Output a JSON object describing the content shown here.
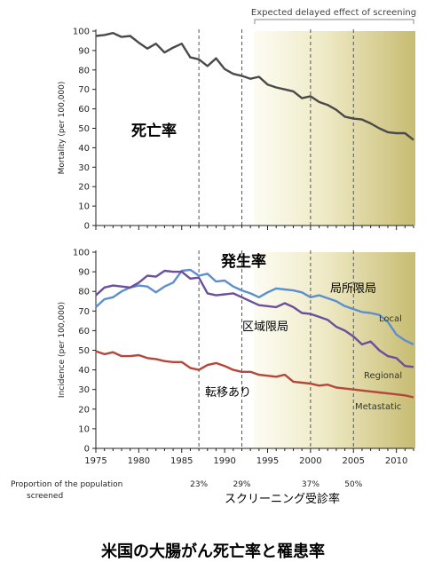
{
  "chart_data": [
    {
      "type": "line",
      "ylabel": "Mortality (per 100,000)",
      "ylim": [
        0,
        100
      ],
      "yticks": [
        0,
        10,
        20,
        30,
        40,
        50,
        60,
        70,
        80,
        90,
        100
      ],
      "xlim": [
        1975,
        2012
      ],
      "xticks": [
        1975,
        1980,
        1985,
        1990,
        1995,
        2000,
        2005,
        2010
      ],
      "grid": false,
      "overlay_label": "死亡率",
      "bracket_label": "Expected delayed effect of screening",
      "series": [
        {
          "color": "#4a4a4a",
          "x": [
            1975,
            1976,
            1977,
            1978,
            1979,
            1980,
            1981,
            1982,
            1983,
            1984,
            1985,
            1986,
            1987,
            1988,
            1989,
            1990,
            1991,
            1992,
            1993,
            1994,
            1995,
            1996,
            1997,
            1998,
            1999,
            2000,
            2001,
            2002,
            2003,
            2004,
            2005,
            2006,
            2007,
            2008,
            2009,
            2010,
            2011,
            2012
          ],
          "y": [
            97.5,
            98,
            99,
            97,
            97.5,
            94,
            91,
            93.5,
            89,
            91.5,
            93.5,
            86.5,
            85.5,
            82,
            86,
            80.5,
            78,
            77,
            75.5,
            76.5,
            72.5,
            71,
            70,
            69,
            65.5,
            66.5,
            63.5,
            62,
            59.5,
            56,
            55,
            54.5,
            52.5,
            50,
            48,
            47.5,
            47.5,
            44
          ]
        }
      ]
    },
    {
      "type": "line",
      "ylabel": "Incidence (per 100,000)",
      "ylim": [
        0,
        100
      ],
      "yticks": [
        0,
        10,
        20,
        30,
        40,
        50,
        60,
        70,
        80,
        90,
        100
      ],
      "xlim": [
        1975,
        2012
      ],
      "xticks": [
        1975,
        1980,
        1985,
        1990,
        1995,
        2000,
        2005,
        2010
      ],
      "xtick_labels": [
        "1975",
        "1980",
        "1985",
        "1990",
        "1995",
        "2000",
        "2005",
        "2010"
      ],
      "grid": false,
      "overlay_label": "発生率",
      "series": [
        {
          "name": "Local",
          "jp_name": "局所限局",
          "color": "#5b8fd0",
          "x": [
            1975,
            1976,
            1977,
            1978,
            1979,
            1980,
            1981,
            1982,
            1983,
            1984,
            1985,
            1986,
            1987,
            1988,
            1989,
            1990,
            1991,
            1992,
            1993,
            1994,
            1995,
            1996,
            1997,
            1998,
            1999,
            2000,
            2001,
            2002,
            2003,
            2004,
            2005,
            2006,
            2007,
            2008,
            2009,
            2010,
            2011,
            2012
          ],
          "y": [
            72,
            76,
            77,
            80,
            82,
            83,
            82.5,
            79.5,
            82.5,
            84.5,
            90.5,
            91,
            88,
            89,
            85,
            85.5,
            82.5,
            80.5,
            79,
            77,
            79.5,
            81.5,
            81,
            80.5,
            79.5,
            77,
            78,
            76.5,
            75,
            72.5,
            71,
            69.5,
            69,
            68,
            64.5,
            58,
            55,
            53
          ]
        },
        {
          "name": "Regional",
          "jp_name": "区域限局",
          "color": "#6b4f9c",
          "x": [
            1975,
            1976,
            1977,
            1978,
            1979,
            1980,
            1981,
            1982,
            1983,
            1984,
            1985,
            1986,
            1987,
            1988,
            1989,
            1990,
            1991,
            1992,
            1993,
            1994,
            1995,
            1996,
            1997,
            1998,
            1999,
            2000,
            2001,
            2002,
            2003,
            2004,
            2005,
            2006,
            2007,
            2008,
            2009,
            2010,
            2011,
            2012
          ],
          "y": [
            78,
            82,
            83,
            82.5,
            82,
            84.5,
            88,
            87.5,
            90.5,
            90,
            90,
            86.5,
            87,
            79,
            78,
            78.5,
            79,
            77,
            75,
            73,
            72.5,
            72,
            74,
            72,
            69,
            68.5,
            67,
            65.5,
            62,
            60,
            57,
            53,
            54.5,
            50,
            47,
            46,
            42,
            41.5
          ]
        },
        {
          "name": "Metastatic",
          "jp_name": "転移あり",
          "color": "#b5473a",
          "x": [
            1975,
            1976,
            1977,
            1978,
            1979,
            1980,
            1981,
            1982,
            1983,
            1984,
            1985,
            1986,
            1987,
            1988,
            1989,
            1990,
            1991,
            1992,
            1993,
            1994,
            1995,
            1996,
            1997,
            1998,
            1999,
            2000,
            2001,
            2002,
            2003,
            2004,
            2005,
            2006,
            2007,
            2008,
            2009,
            2010,
            2011,
            2012
          ],
          "y": [
            49.5,
            48,
            49,
            47,
            47,
            47.5,
            46,
            45.5,
            44.5,
            44,
            44,
            41,
            40,
            42.5,
            43.5,
            42,
            40,
            39,
            39,
            37.5,
            37,
            36.5,
            37.5,
            34,
            33.5,
            33,
            32,
            32.5,
            31,
            30.5,
            30,
            29.5,
            29,
            28.5,
            28,
            27.5,
            27,
            26
          ]
        }
      ],
      "proportion": {
        "label_line1": "Proportion of the population",
        "label_line2": "screened",
        "values": [
          {
            "year": 1987,
            "label": "23%"
          },
          {
            "year": 1992,
            "label": "29%"
          },
          {
            "year": 2000,
            "label": "37%"
          },
          {
            "year": 2005,
            "label": "50%"
          }
        ],
        "jp_label": "スクリーニング受診率"
      }
    }
  ],
  "caption": "米国の大腸がん死亡率と罹患率"
}
